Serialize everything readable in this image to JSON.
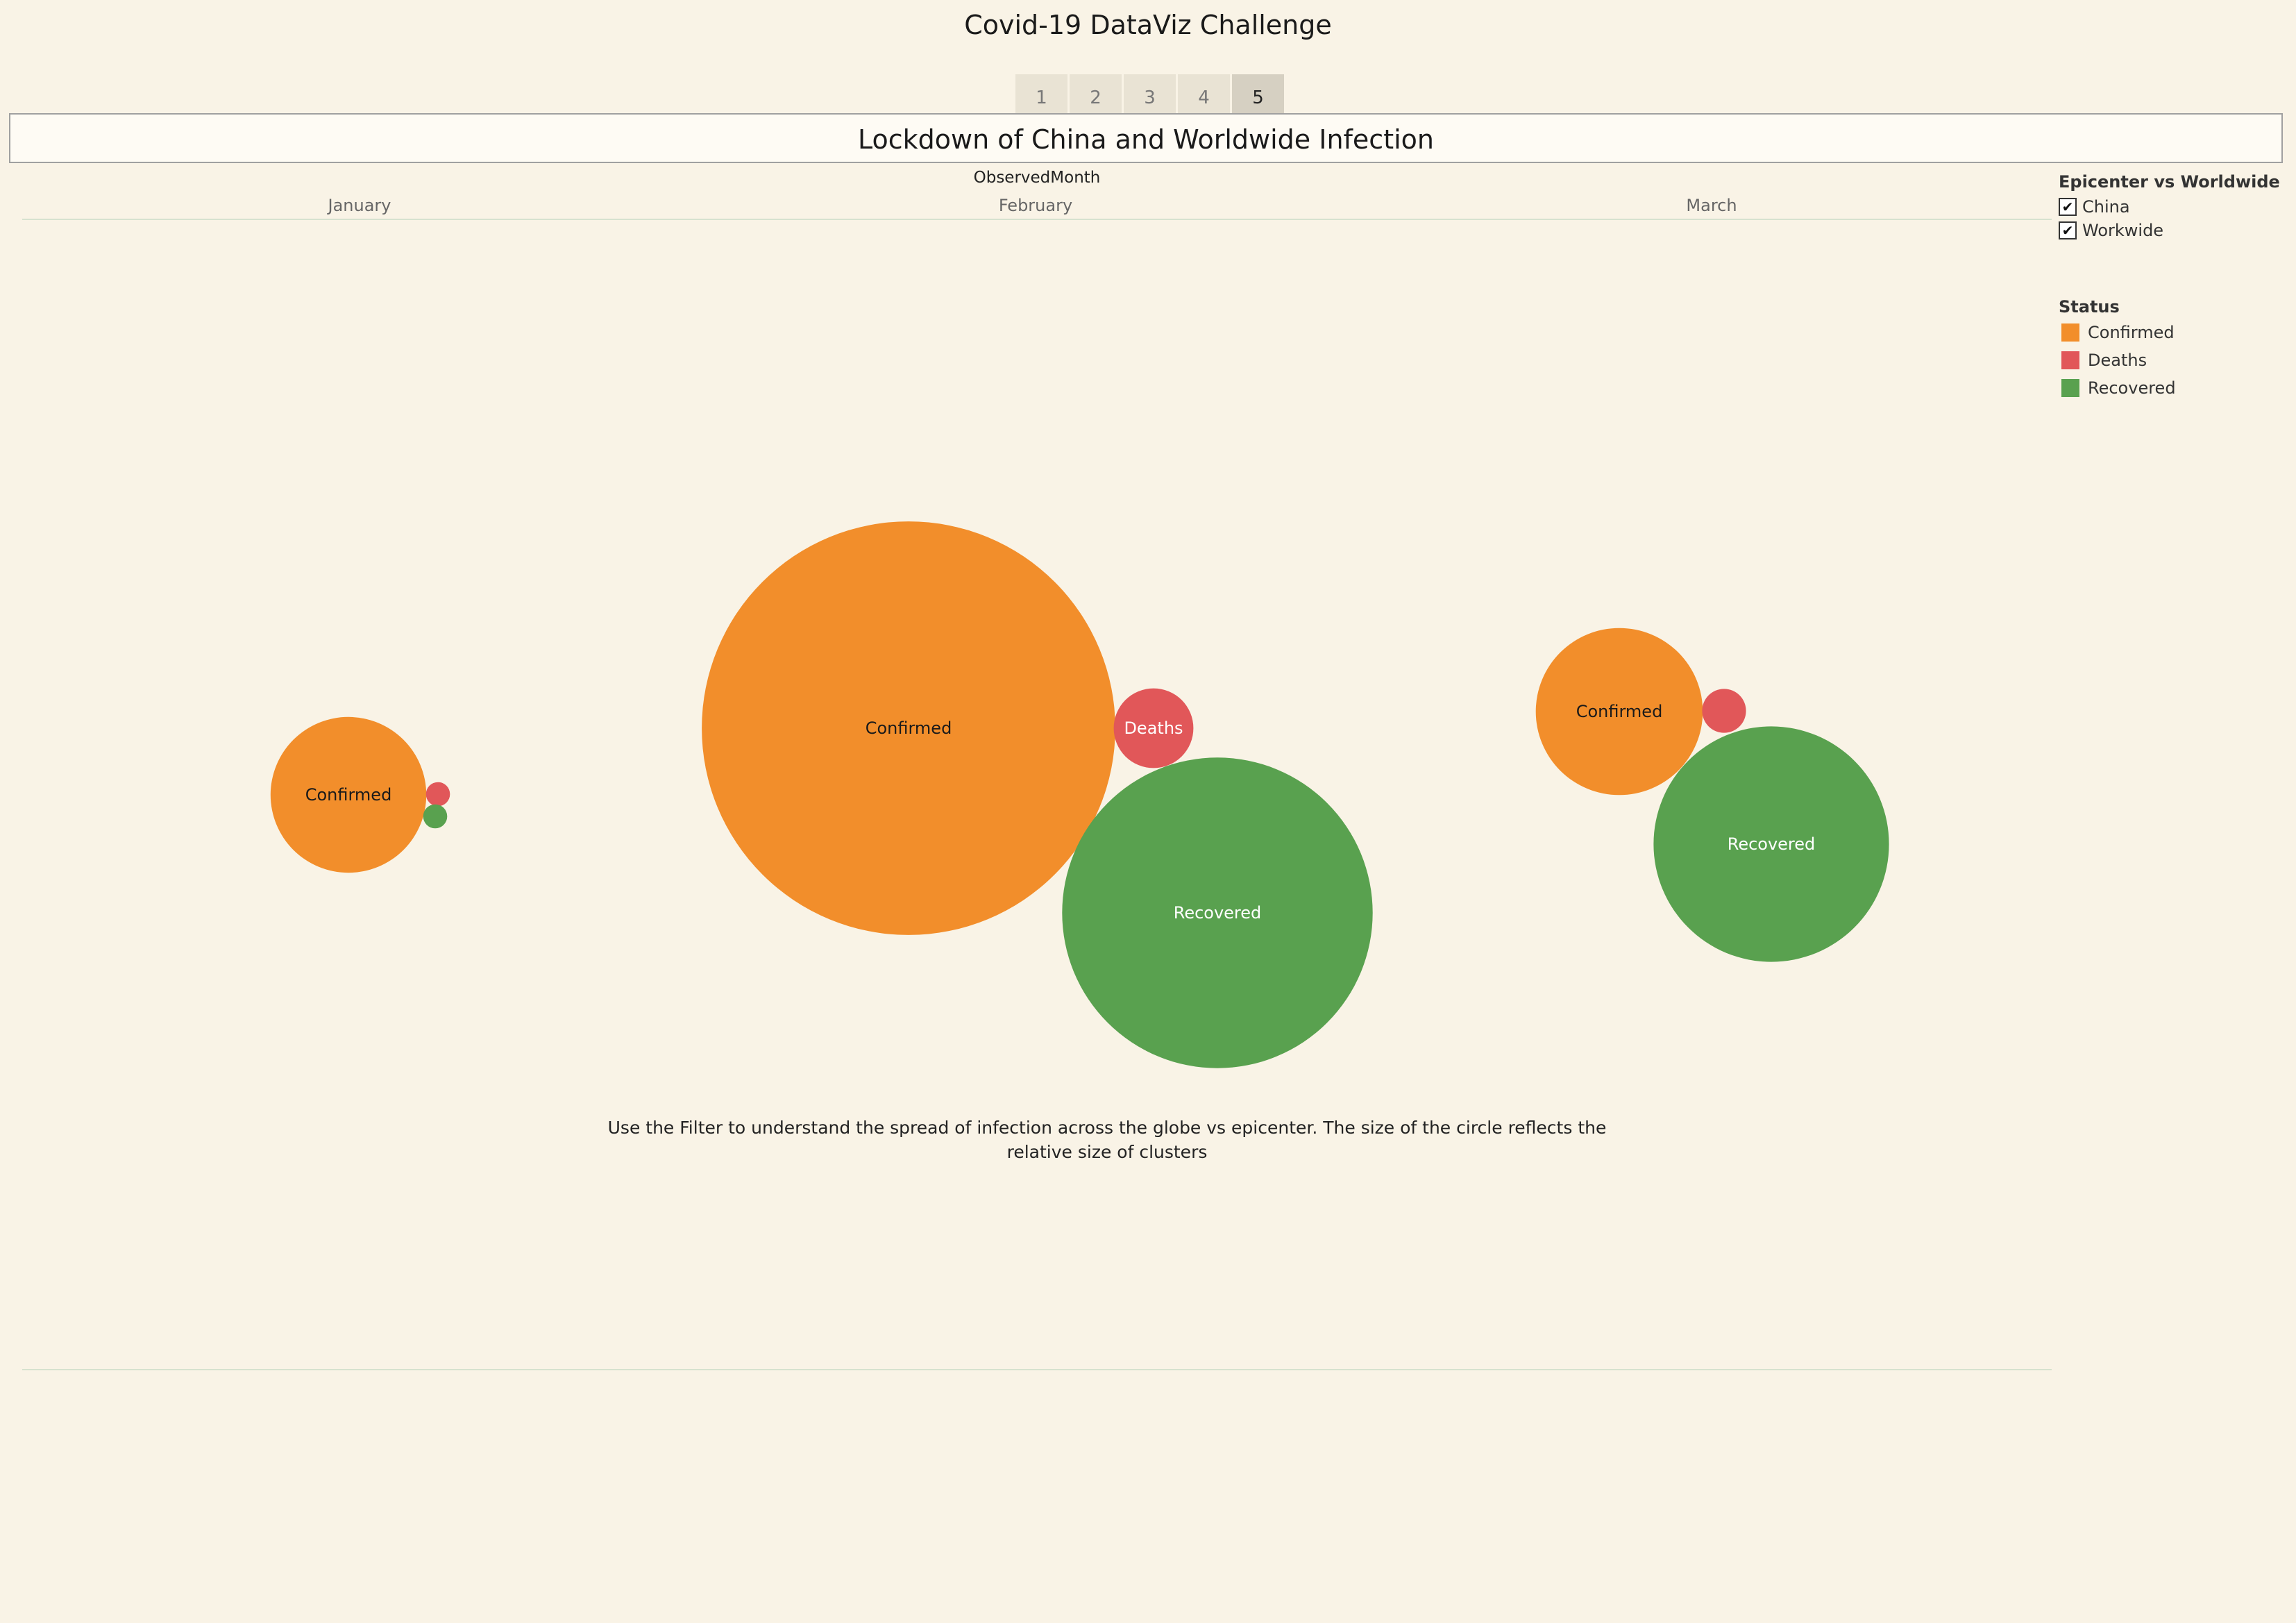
{
  "story": {
    "title": "Covid-19 DataViz Challenge",
    "tabs": [
      "1",
      "2",
      "3",
      "4",
      "5"
    ],
    "active_tab": 4
  },
  "caption": "Lockdown of China and Worldwide Infection",
  "footnote": "Use the Filter to understand the spread of infection across the globe vs epicenter. The size of the circle reflects the relative size of clusters",
  "filter": {
    "title": "Epicenter vs Worldwide",
    "items": [
      {
        "label": "China",
        "checked": true
      },
      {
        "label": "Workwide",
        "checked": true
      }
    ]
  },
  "legend": {
    "title": "Status",
    "items": [
      {
        "label": "Confirmed",
        "color": "#f28e2b"
      },
      {
        "label": "Deaths",
        "color": "#e15759"
      },
      {
        "label": "Recovered",
        "color": "#59a14f"
      }
    ]
  },
  "chart_data": {
    "type": "packed-bubble",
    "title": "Lockdown of China and Worldwide Infection",
    "column_header": "ObservedMonth",
    "colors": {
      "Confirmed": "#f28e2b",
      "Deaths": "#e15759",
      "Recovered": "#59a14f"
    },
    "months": [
      {
        "month": "January",
        "bubbles": [
          {
            "status": "Confirmed",
            "label": "Confirmed",
            "relative_size": 12.6
          },
          {
            "status": "Deaths",
            "label": "",
            "relative_size": 0.3
          },
          {
            "status": "Recovered",
            "label": "",
            "relative_size": 0.3
          }
        ]
      },
      {
        "month": "February",
        "bubbles": [
          {
            "status": "Confirmed",
            "label": "Confirmed",
            "relative_size": 88.9
          },
          {
            "status": "Deaths",
            "label": "Deaths",
            "relative_size": 3.3
          },
          {
            "status": "Recovered",
            "label": "Recovered",
            "relative_size": 50.1
          }
        ]
      },
      {
        "month": "March",
        "bubbles": [
          {
            "status": "Confirmed",
            "label": "Confirmed",
            "relative_size": 14.5
          },
          {
            "status": "Deaths",
            "label": "",
            "relative_size": 1.0
          },
          {
            "status": "Recovered",
            "label": "Recovered",
            "relative_size": 28.8
          }
        ]
      }
    ]
  }
}
